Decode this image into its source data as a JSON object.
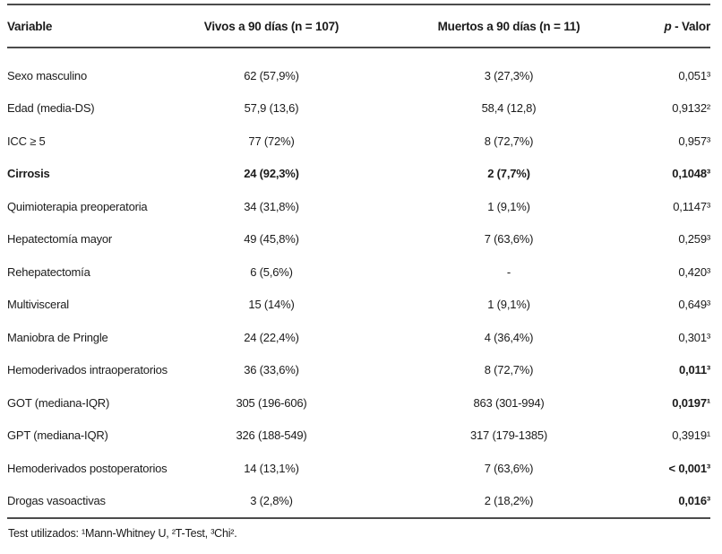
{
  "colors": {
    "rule": "#4c4c4c",
    "text": "#1b1b1b",
    "background": "#ffffff"
  },
  "table": {
    "header": {
      "variable": "Variable",
      "vivos": "Vivos a 90 días (n = 107)",
      "muertos": "Muertos a 90 días (n = 11)",
      "p_italic": "p",
      "p_rest": " - Valor"
    },
    "rows": [
      {
        "variable": "Sexo masculino",
        "vivos": "62 (57,9%)",
        "muertos": "3 (27,3%)",
        "p": "0,051³",
        "bold_row": false,
        "bold_p": false
      },
      {
        "variable": "Edad (media-DS)",
        "vivos": "57,9 (13,6)",
        "muertos": "58,4 (12,8)",
        "p": "0,9132²",
        "bold_row": false,
        "bold_p": false
      },
      {
        "variable": "ICC ≥ 5",
        "vivos": "77 (72%)",
        "muertos": "8 (72,7%)",
        "p": "0,957³",
        "bold_row": false,
        "bold_p": false
      },
      {
        "variable": "Cirrosis",
        "vivos": "24 (92,3%)",
        "muertos": "2 (7,7%)",
        "p": "0,1048³",
        "bold_row": true,
        "bold_p": true
      },
      {
        "variable": "Quimioterapia preoperatoria",
        "vivos": "34 (31,8%)",
        "muertos": "1 (9,1%)",
        "p": "0,1147³",
        "bold_row": false,
        "bold_p": false
      },
      {
        "variable": "Hepatectomía mayor",
        "vivos": "49 (45,8%)",
        "muertos": "7 (63,6%)",
        "p": "0,259³",
        "bold_row": false,
        "bold_p": false
      },
      {
        "variable": "Rehepatectomía",
        "vivos": "6 (5,6%)",
        "muertos": "-",
        "p": "0,420³",
        "bold_row": false,
        "bold_p": false
      },
      {
        "variable": "Multivisceral",
        "vivos": "15 (14%)",
        "muertos": "1 (9,1%)",
        "p": "0,649³",
        "bold_row": false,
        "bold_p": false
      },
      {
        "variable": "Maniobra de Pringle",
        "vivos": "24 (22,4%)",
        "muertos": "4 (36,4%)",
        "p": "0,301³",
        "bold_row": false,
        "bold_p": false
      },
      {
        "variable": "Hemoderivados intraoperatorios",
        "vivos": "36 (33,6%)",
        "muertos": "8 (72,7%)",
        "p": "0,011³",
        "bold_row": false,
        "bold_p": true
      },
      {
        "variable": "GOT (mediana-IQR)",
        "vivos": "305 (196-606)",
        "muertos": "863 (301-994)",
        "p": "0,0197¹",
        "bold_row": false,
        "bold_p": true
      },
      {
        "variable": "GPT (mediana-IQR)",
        "vivos": "326 (188-549)",
        "muertos": "317 (179-1385)",
        "p": "0,3919¹",
        "bold_row": false,
        "bold_p": false
      },
      {
        "variable": "Hemoderivados postoperatorios",
        "vivos": "14 (13,1%)",
        "muertos": "7 (63,6%)",
        "p": "< 0,001³",
        "bold_row": false,
        "bold_p": true
      },
      {
        "variable": "Drogas vasoactivas",
        "vivos": "3 (2,8%)",
        "muertos": "2 (18,2%)",
        "p": "0,016³",
        "bold_row": false,
        "bold_p": true
      }
    ],
    "footnote": "Test utilizados: ¹Mann-Whitney U, ²T-Test, ³Chi²."
  }
}
